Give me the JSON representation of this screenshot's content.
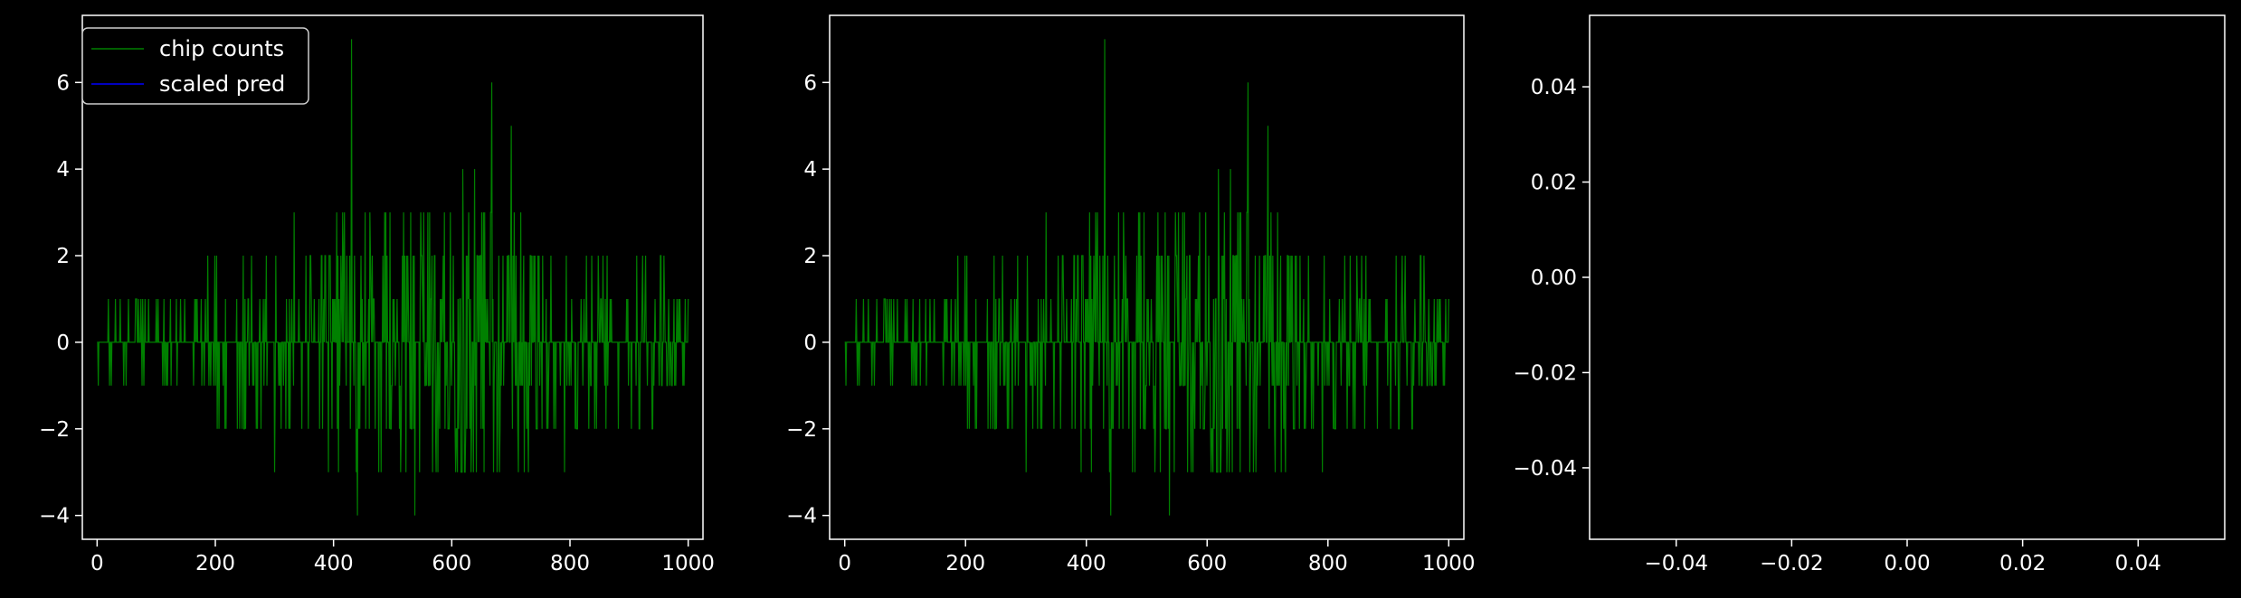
{
  "colors": {
    "background": "#000000",
    "axis": "#ffffff",
    "chip_series": "#008000",
    "pred_series": "#0000ff"
  },
  "legend": {
    "location": "upper-left",
    "entries": [
      "chip counts",
      "scaled pred"
    ]
  },
  "chart_data": [
    {
      "type": "line",
      "title": "",
      "xlabel": "",
      "ylabel": "",
      "xlim": [
        -25,
        1025
      ],
      "ylim": [
        -4.55,
        7.55
      ],
      "xticks": [
        0,
        200,
        400,
        600,
        800,
        1000
      ],
      "xtick_labels": [
        "0",
        "200",
        "400",
        "600",
        "800",
        "1000"
      ],
      "yticks": [
        -4,
        -2,
        0,
        2,
        4,
        6
      ],
      "ytick_labels": [
        "−4",
        "−2",
        "0",
        "2",
        "4",
        "6"
      ],
      "grid": false,
      "legend": true,
      "series": [
        {
          "name": "chip counts",
          "color": "#008000",
          "x_range": [
            0,
            1000
          ],
          "n_points": 1000,
          "peaks": [
            {
              "x": 430,
              "y": 7
            },
            {
              "x": 667,
              "y": 6
            },
            {
              "x": 700,
              "y": 5
            },
            {
              "x": 618,
              "y": 4
            },
            {
              "x": 638,
              "y": 4
            },
            {
              "x": 333,
              "y": 3
            },
            {
              "x": 415,
              "y": 3
            },
            {
              "x": 547,
              "y": 3
            },
            {
              "x": 650,
              "y": 3
            },
            {
              "x": 440,
              "y": -4
            },
            {
              "x": 537,
              "y": -4
            },
            {
              "x": 300,
              "y": -3
            },
            {
              "x": 545,
              "y": -3
            },
            {
              "x": 632,
              "y": -3
            },
            {
              "x": 680,
              "y": -3
            },
            {
              "x": 722,
              "y": -3
            },
            {
              "x": 790,
              "y": -3
            }
          ]
        },
        {
          "name": "scaled pred",
          "color": "#0000ff",
          "values": []
        }
      ]
    },
    {
      "type": "line",
      "title": "",
      "xlabel": "",
      "ylabel": "",
      "xlim": [
        -25,
        1025
      ],
      "ylim": [
        -4.55,
        7.55
      ],
      "xticks": [
        0,
        200,
        400,
        600,
        800,
        1000
      ],
      "xtick_labels": [
        "0",
        "200",
        "400",
        "600",
        "800",
        "1000"
      ],
      "yticks": [
        -4,
        -2,
        0,
        2,
        4,
        6
      ],
      "ytick_labels": [
        "−4",
        "−2",
        "0",
        "2",
        "4",
        "6"
      ],
      "grid": false,
      "legend": false,
      "series": [
        {
          "color": "#008000",
          "x_range": [
            0,
            1000
          ],
          "n_points": 1000,
          "same_as_panel": 0
        }
      ]
    },
    {
      "type": "line",
      "title": "",
      "xlabel": "",
      "ylabel": "",
      "xlim": [
        -0.055,
        0.055
      ],
      "ylim": [
        -0.055,
        0.055
      ],
      "xticks": [
        -0.04,
        -0.02,
        0.0,
        0.02,
        0.04
      ],
      "xtick_labels": [
        "−0.04",
        "−0.02",
        "0.00",
        "0.02",
        "0.04"
      ],
      "yticks": [
        -0.04,
        -0.02,
        0.0,
        0.02,
        0.04
      ],
      "ytick_labels": [
        "−0.04",
        "−0.02",
        "0.00",
        "0.02",
        "0.04"
      ],
      "grid": false,
      "legend": false,
      "series": []
    }
  ]
}
